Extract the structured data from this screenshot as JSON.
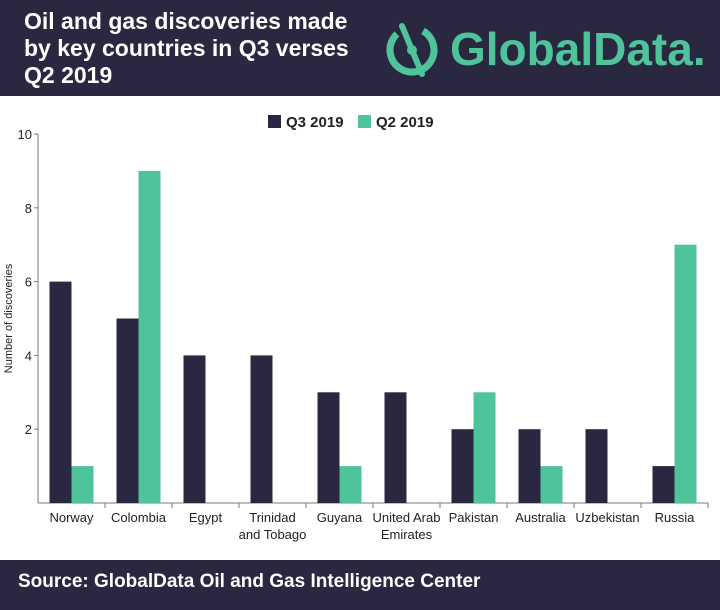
{
  "header": {
    "title_lines": [
      "Oil and gas discoveries made",
      "by key countries in Q3 verses",
      "Q2 2019"
    ],
    "brand_name": "GlobalData."
  },
  "colors": {
    "header_bg": "#2a2740",
    "q3": "#2a2740",
    "q2": "#4fc39a",
    "axis": "#7a7a7a",
    "text": "#222222"
  },
  "chart_data": {
    "type": "bar",
    "categories": [
      [
        "Norway"
      ],
      [
        "Colombia"
      ],
      [
        "Egypt"
      ],
      [
        "Trinidad",
        "and Tobago"
      ],
      [
        "Guyana"
      ],
      [
        "United Arab",
        "Emirates"
      ],
      [
        "Pakistan"
      ],
      [
        "Australia"
      ],
      [
        "Uzbekistan"
      ],
      [
        "Russia"
      ]
    ],
    "series": [
      {
        "name": "Q3 2019",
        "values": [
          6,
          5,
          4,
          4,
          3,
          3,
          2,
          2,
          2,
          1
        ]
      },
      {
        "name": "Q2 2019",
        "values": [
          1,
          9,
          0,
          0,
          1,
          0,
          3,
          1,
          0,
          7
        ]
      }
    ],
    "ylabel": "Number of discoveries",
    "ylim": [
      0,
      10
    ],
    "yticks": [
      2,
      4,
      6,
      8,
      10
    ],
    "legend_position": "top-center",
    "grid": false
  },
  "footer": {
    "source": "Source:  GlobalData Oil and Gas Intelligence Center"
  }
}
